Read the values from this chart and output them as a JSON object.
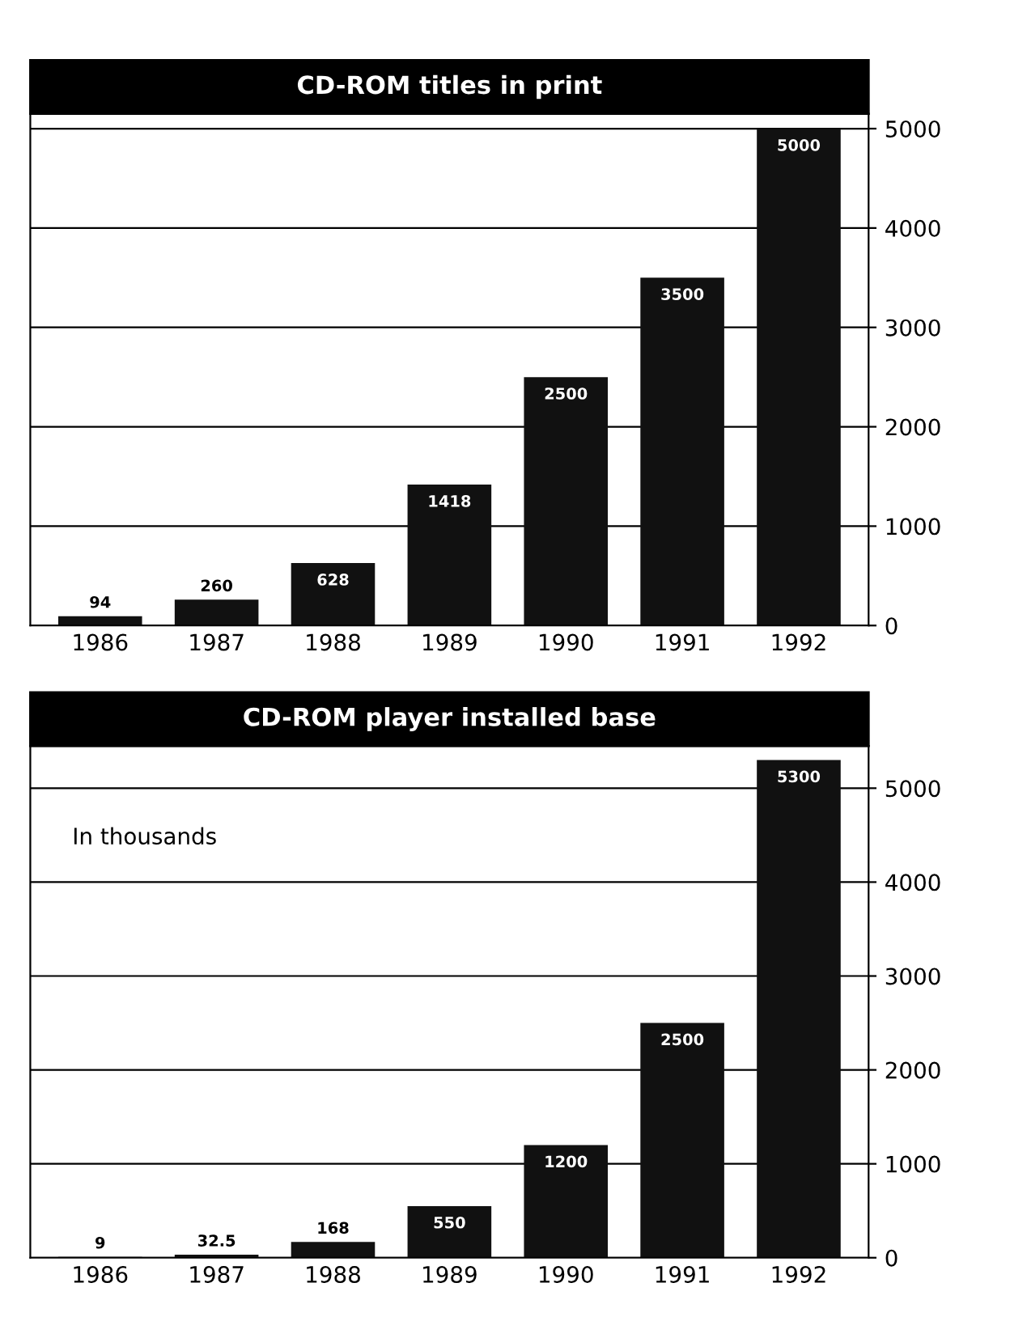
{
  "chart_data": [
    {
      "type": "bar",
      "title": "CD-ROM titles in print",
      "categories": [
        "1986",
        "1987",
        "1988",
        "1989",
        "1990",
        "1991",
        "1992"
      ],
      "values": [
        94,
        260,
        628,
        1418,
        2500,
        3500,
        5000
      ],
      "color": "#111111",
      "ylim": [
        0,
        5150
      ],
      "yticks": [
        0,
        1000,
        2000,
        3000,
        4000,
        5000
      ],
      "grid": "y",
      "data_labels": true
    },
    {
      "type": "bar",
      "title": "CD-ROM player installed base",
      "categories": [
        "1986",
        "1987",
        "1988",
        "1989",
        "1990",
        "1991",
        "1992"
      ],
      "values": [
        9,
        32.5,
        168,
        550,
        1200,
        2500,
        5300
      ],
      "color": "#111111",
      "ylim": [
        0,
        5450
      ],
      "yticks": [
        0,
        1000,
        2000,
        3000,
        4000,
        5000
      ],
      "grid": "y",
      "data_labels": true,
      "annotations": [
        "In thousands"
      ]
    }
  ]
}
